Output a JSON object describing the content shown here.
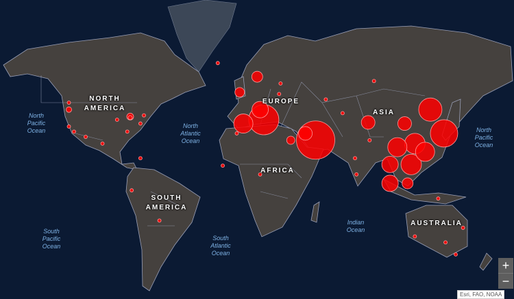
{
  "map": {
    "background_color": "#0b1a33",
    "land_color": "#45413e",
    "marker_color": "#ff0000",
    "projection": "web-mercator",
    "continent_labels": [
      {
        "id": "north-america",
        "line1": "NORTH",
        "line2": "AMERICA"
      },
      {
        "id": "europe",
        "line1": "EUROPE",
        "line2": ""
      },
      {
        "id": "asia",
        "line1": "ASIA",
        "line2": ""
      },
      {
        "id": "africa",
        "line1": "AFRICA",
        "line2": ""
      },
      {
        "id": "south-america",
        "line1": "SOUTH",
        "line2": "AMERICA"
      },
      {
        "id": "australia",
        "line1": "AUSTRALIA",
        "line2": ""
      }
    ],
    "ocean_labels": [
      {
        "id": "north-pacific-west",
        "line1": "North",
        "line2": "Pacific",
        "line3": "Ocean"
      },
      {
        "id": "north-atlantic",
        "line1": "North",
        "line2": "Atlantic",
        "line3": "Ocean"
      },
      {
        "id": "north-pacific-east",
        "line1": "North",
        "line2": "Pacific",
        "line3": "Ocean"
      },
      {
        "id": "south-pacific",
        "line1": "South",
        "line2": "Pacific",
        "line3": "Ocean"
      },
      {
        "id": "south-atlantic",
        "line1": "South",
        "line2": "Atlantic",
        "line3": "Ocean"
      },
      {
        "id": "indian",
        "line1": "Indian",
        "line2": "Ocean",
        "line3": ""
      }
    ],
    "markers": [
      {
        "lon": 128.6,
        "lat": 46.4,
        "size": 17
      },
      {
        "lon": 138,
        "lat": 34,
        "size": 20
      },
      {
        "lon": 118,
        "lat": 28,
        "size": 15
      },
      {
        "lon": 106,
        "lat": 25.8,
        "size": 14
      },
      {
        "lon": 115.5,
        "lat": 14.7,
        "size": 15
      },
      {
        "lon": 101,
        "lat": 14.7,
        "size": 12
      },
      {
        "lon": 125,
        "lat": 22.9,
        "size": 14
      },
      {
        "lon": 101,
        "lat": 1.9,
        "size": 12
      },
      {
        "lon": 113,
        "lat": 1.9,
        "size": 8
      },
      {
        "lon": 111,
        "lat": 39.4,
        "size": 10
      },
      {
        "lon": 86,
        "lat": 40,
        "size": 10
      },
      {
        "lon": 50,
        "lat": 30.1,
        "size": 28
      },
      {
        "lon": 43,
        "lat": 34,
        "size": 10
      },
      {
        "lon": 14.5,
        "lat": 41.4,
        "size": 22
      },
      {
        "lon": 0.5,
        "lat": 39.4,
        "size": 14
      },
      {
        "lon": -2,
        "lat": 54,
        "size": 7
      },
      {
        "lon": 10,
        "lat": 59.8,
        "size": 8
      },
      {
        "lon": 12,
        "lat": 46.4,
        "size": 12
      },
      {
        "lon": 33,
        "lat": 30,
        "size": 6
      },
      {
        "lon": -77,
        "lat": 43,
        "size": 5
      },
      {
        "lon": -119,
        "lat": 46.4,
        "size": 4
      },
      {
        "lon": -17,
        "lat": 64.2,
        "size": 2.5
      },
      {
        "lon": -119,
        "lat": 37.8,
        "size": 2.5
      },
      {
        "lon": -115.5,
        "lat": 35,
        "size": 2.5
      },
      {
        "lon": -107.5,
        "lat": 32,
        "size": 2.5
      },
      {
        "lon": -96,
        "lat": 28,
        "size": 2.5
      },
      {
        "lon": -79,
        "lat": 35,
        "size": 2.5
      },
      {
        "lon": -67.6,
        "lat": 43.6,
        "size": 2.5
      },
      {
        "lon": -70,
        "lat": 39.4,
        "size": 2.5
      },
      {
        "lon": -86,
        "lat": 41.4,
        "size": 2.5
      },
      {
        "lon": -77,
        "lat": 42.5,
        "size": 3
      },
      {
        "lon": -76,
        "lat": -2.9,
        "size": 2.5
      },
      {
        "lon": -57,
        "lat": -23,
        "size": 2.5
      },
      {
        "lon": -13.6,
        "lat": 13.9,
        "size": 2.5
      },
      {
        "lon": 12,
        "lat": 8,
        "size": 2.5
      },
      {
        "lon": 77,
        "lat": 18.8,
        "size": 2.5
      },
      {
        "lon": 78,
        "lat": 8,
        "size": 2.5
      },
      {
        "lon": 134,
        "lat": -8.5,
        "size": 2.5
      },
      {
        "lon": 151,
        "lat": -27.5,
        "size": 2.5
      },
      {
        "lon": 118,
        "lat": -32.6,
        "size": 2.5
      },
      {
        "lon": 139,
        "lat": -36,
        "size": 2.5
      },
      {
        "lon": 146,
        "lat": -42.4,
        "size": 2.5
      },
      {
        "lon": 90,
        "lat": 58.3,
        "size": 2.5
      },
      {
        "lon": 25,
        "lat": 53.3,
        "size": 2.5
      },
      {
        "lon": 26,
        "lat": 57.4,
        "size": 2.5
      },
      {
        "lon": 57,
        "lat": 51,
        "size": 2.5
      },
      {
        "lon": 68.5,
        "lat": 44.7,
        "size": 2.5
      },
      {
        "lon": 87,
        "lat": 30,
        "size": 2.5
      },
      {
        "lon": -4,
        "lat": 34,
        "size": 2.5
      },
      {
        "lon": -70,
        "lat": 18.8,
        "size": 2.5
      },
      {
        "lon": -119,
        "lat": 49.6,
        "size": 2.5
      }
    ]
  },
  "controls": {
    "zoom_in": "+",
    "zoom_out": "−"
  },
  "attribution": "Esri, FAO, NOAA"
}
